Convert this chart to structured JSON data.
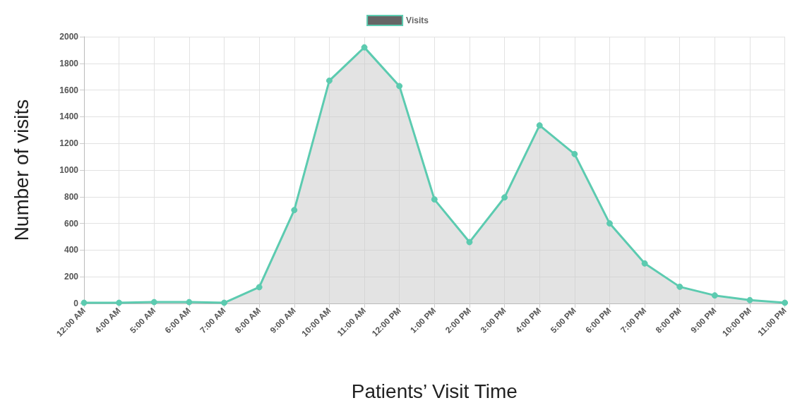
{
  "chart_data": {
    "type": "area",
    "xlabel": "Patients’ Visit Time",
    "ylabel": "Number of visits",
    "categories": [
      "12:00 AM",
      "4:00 AM",
      "5:00 AM",
      "6:00 AM",
      "7:00 AM",
      "8:00 AM",
      "9:00 AM",
      "10:00 AM",
      "11:00 AM",
      "12:00 PM",
      "1:00 PM",
      "2:00 PM",
      "3:00 PM",
      "4:00 PM",
      "5:00 PM",
      "6:00 PM",
      "7:00 PM",
      "8:00 PM",
      "9:00 PM",
      "10:00 PM",
      "11:00 PM"
    ],
    "series": [
      {
        "name": "Visits",
        "color": "#5ccbb0",
        "values": [
          5,
          5,
          10,
          10,
          5,
          122,
          700,
          1670,
          1920,
          1630,
          780,
          460,
          795,
          1335,
          1120,
          600,
          300,
          125,
          60,
          25,
          5
        ]
      }
    ],
    "ylim": [
      0,
      2000
    ],
    "yticks": [
      0,
      200,
      400,
      600,
      800,
      1000,
      1200,
      1400,
      1600,
      1800,
      2000
    ],
    "grid": true,
    "legend": "top",
    "marker": "circle",
    "line_style": "solid"
  }
}
